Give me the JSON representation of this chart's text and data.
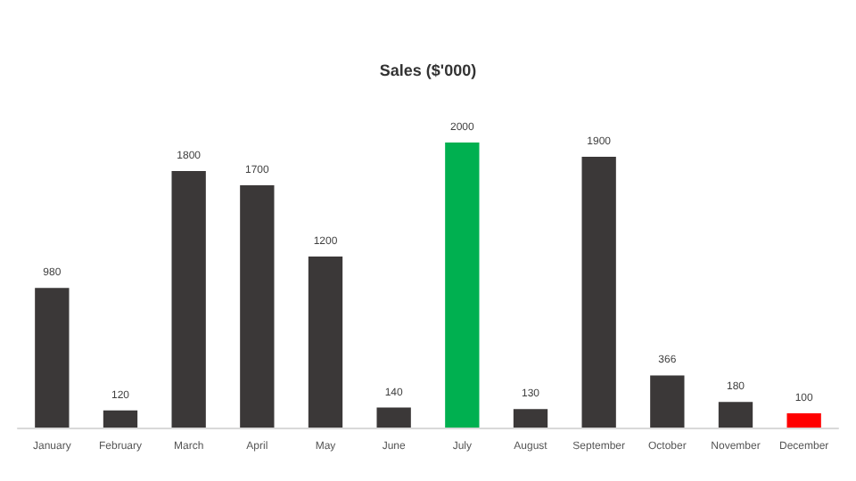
{
  "chart_data": {
    "type": "bar",
    "title": "Sales ($'000)",
    "categories": [
      "January",
      "February",
      "March",
      "April",
      "May",
      "June",
      "July",
      "August",
      "September",
      "October",
      "November",
      "December"
    ],
    "values": [
      980,
      120,
      1800,
      1700,
      1200,
      140,
      2000,
      130,
      1900,
      366,
      180,
      100
    ],
    "colors": [
      "#3b3838",
      "#3b3838",
      "#3b3838",
      "#3b3838",
      "#3b3838",
      "#3b3838",
      "#00b050",
      "#3b3838",
      "#3b3838",
      "#3b3838",
      "#3b3838",
      "#ff0000"
    ],
    "data_labels": true
  }
}
